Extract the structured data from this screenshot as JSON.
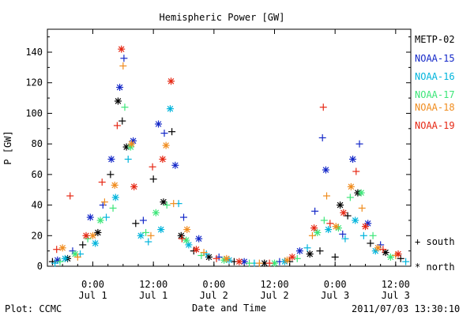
{
  "chart_data": {
    "type": "scatter",
    "title": "Hemispheric Power [GW]",
    "ylabel": "P [GW]",
    "xlabel": "Date and Time",
    "ylim": [
      0,
      155
    ],
    "yticks": [
      0,
      20,
      40,
      60,
      80,
      100,
      120,
      140
    ],
    "xlim": [
      "2011-06-30T15:00",
      "2011-07-03T15:00"
    ],
    "xticks": [
      {
        "t": "2011-07-01T00:00",
        "time": "0:00",
        "date": "Jul 1"
      },
      {
        "t": "2011-07-01T12:00",
        "time": "12:00",
        "date": "Jul 1"
      },
      {
        "t": "2011-07-02T00:00",
        "time": "0:00",
        "date": "Jul 2"
      },
      {
        "t": "2011-07-02T12:00",
        "time": "12:00",
        "date": "Jul 2"
      },
      {
        "t": "2011-07-03T00:00",
        "time": "0:00",
        "date": "Jul 3"
      },
      {
        "t": "2011-07-03T12:00",
        "time": "12:00",
        "date": "Jul 3"
      }
    ],
    "markers": {
      "south": "+",
      "north": "*"
    },
    "marker_labels": {
      "south": "south",
      "north": "north"
    },
    "series": [
      {
        "name": "METP-02",
        "color": "#000000",
        "points": [
          {
            "t": "2011-06-30T16:00",
            "v": 3,
            "h": "south"
          },
          {
            "t": "2011-06-30T19:00",
            "v": 5,
            "h": "north"
          },
          {
            "t": "2011-06-30T22:00",
            "v": 14,
            "h": "south"
          },
          {
            "t": "2011-07-01T01:00",
            "v": 22,
            "h": "north"
          },
          {
            "t": "2011-07-01T03:30",
            "v": 60,
            "h": "south"
          },
          {
            "t": "2011-07-01T05:00",
            "v": 108,
            "h": "north"
          },
          {
            "t": "2011-07-01T05:50",
            "v": 95,
            "h": "south"
          },
          {
            "t": "2011-07-01T06:40",
            "v": 78,
            "h": "north"
          },
          {
            "t": "2011-07-01T08:30",
            "v": 28,
            "h": "south"
          },
          {
            "t": "2011-07-01T12:00",
            "v": 57,
            "h": "south"
          },
          {
            "t": "2011-07-01T14:00",
            "v": 42,
            "h": "north"
          },
          {
            "t": "2011-07-01T15:40",
            "v": 88,
            "h": "south"
          },
          {
            "t": "2011-07-01T17:30",
            "v": 20,
            "h": "north"
          },
          {
            "t": "2011-07-01T20:00",
            "v": 10,
            "h": "south"
          },
          {
            "t": "2011-07-01T23:00",
            "v": 6,
            "h": "north"
          },
          {
            "t": "2011-07-02T04:00",
            "v": 3,
            "h": "south"
          },
          {
            "t": "2011-07-02T10:00",
            "v": 2,
            "h": "north"
          },
          {
            "t": "2011-07-02T15:00",
            "v": 3,
            "h": "south"
          },
          {
            "t": "2011-07-02T19:00",
            "v": 8,
            "h": "north"
          },
          {
            "t": "2011-07-02T21:00",
            "v": 10,
            "h": "south"
          },
          {
            "t": "2011-07-03T00:00",
            "v": 6,
            "h": "south"
          },
          {
            "t": "2011-07-03T01:00",
            "v": 40,
            "h": "north"
          },
          {
            "t": "2011-07-03T02:30",
            "v": 33,
            "h": "south"
          },
          {
            "t": "2011-07-03T04:30",
            "v": 48,
            "h": "north"
          },
          {
            "t": "2011-07-03T07:00",
            "v": 15,
            "h": "south"
          },
          {
            "t": "2011-07-03T10:00",
            "v": 9,
            "h": "north"
          },
          {
            "t": "2011-07-03T13:00",
            "v": 5,
            "h": "south"
          }
        ]
      },
      {
        "name": "NOAA-15",
        "color": "#1428c8",
        "points": [
          {
            "t": "2011-06-30T17:00",
            "v": 4,
            "h": "north"
          },
          {
            "t": "2011-06-30T20:00",
            "v": 10,
            "h": "south"
          },
          {
            "t": "2011-06-30T23:30",
            "v": 32,
            "h": "north"
          },
          {
            "t": "2011-07-01T02:00",
            "v": 40,
            "h": "south"
          },
          {
            "t": "2011-07-01T03:40",
            "v": 70,
            "h": "north"
          },
          {
            "t": "2011-07-01T05:20",
            "v": 117,
            "h": "north"
          },
          {
            "t": "2011-07-01T06:10",
            "v": 136,
            "h": "south"
          },
          {
            "t": "2011-07-01T08:00",
            "v": 82,
            "h": "north"
          },
          {
            "t": "2011-07-01T10:00",
            "v": 30,
            "h": "south"
          },
          {
            "t": "2011-07-01T13:00",
            "v": 93,
            "h": "north"
          },
          {
            "t": "2011-07-01T14:10",
            "v": 87,
            "h": "south"
          },
          {
            "t": "2011-07-01T16:20",
            "v": 66,
            "h": "north"
          },
          {
            "t": "2011-07-01T18:00",
            "v": 32,
            "h": "south"
          },
          {
            "t": "2011-07-01T21:00",
            "v": 18,
            "h": "north"
          },
          {
            "t": "2011-07-02T01:00",
            "v": 6,
            "h": "south"
          },
          {
            "t": "2011-07-02T06:00",
            "v": 3,
            "h": "north"
          },
          {
            "t": "2011-07-02T13:00",
            "v": 3,
            "h": "south"
          },
          {
            "t": "2011-07-02T17:00",
            "v": 10,
            "h": "north"
          },
          {
            "t": "2011-07-02T20:00",
            "v": 36,
            "h": "south"
          },
          {
            "t": "2011-07-02T21:30",
            "v": 84,
            "h": "south"
          },
          {
            "t": "2011-07-02T22:10",
            "v": 63,
            "h": "north"
          },
          {
            "t": "2011-07-03T01:30",
            "v": 21,
            "h": "south"
          },
          {
            "t": "2011-07-03T03:30",
            "v": 70,
            "h": "north"
          },
          {
            "t": "2011-07-03T04:50",
            "v": 80,
            "h": "south"
          },
          {
            "t": "2011-07-03T06:30",
            "v": 28,
            "h": "north"
          },
          {
            "t": "2011-07-03T09:00",
            "v": 14,
            "h": "south"
          }
        ]
      },
      {
        "name": "NOAA-16",
        "color": "#00b4dc",
        "points": [
          {
            "t": "2011-06-30T16:30",
            "v": 2,
            "h": "south"
          },
          {
            "t": "2011-06-30T18:30",
            "v": 5,
            "h": "north"
          },
          {
            "t": "2011-06-30T21:30",
            "v": 8,
            "h": "south"
          },
          {
            "t": "2011-07-01T00:30",
            "v": 15,
            "h": "north"
          },
          {
            "t": "2011-07-01T02:40",
            "v": 32,
            "h": "south"
          },
          {
            "t": "2011-07-01T04:30",
            "v": 45,
            "h": "north"
          },
          {
            "t": "2011-07-01T07:00",
            "v": 70,
            "h": "south"
          },
          {
            "t": "2011-07-01T09:30",
            "v": 20,
            "h": "north"
          },
          {
            "t": "2011-07-01T11:00",
            "v": 16,
            "h": "south"
          },
          {
            "t": "2011-07-01T13:30",
            "v": 24,
            "h": "north"
          },
          {
            "t": "2011-07-01T15:20",
            "v": 103,
            "h": "north"
          },
          {
            "t": "2011-07-01T17:00",
            "v": 41,
            "h": "south"
          },
          {
            "t": "2011-07-01T19:00",
            "v": 14,
            "h": "north"
          },
          {
            "t": "2011-07-01T22:30",
            "v": 8,
            "h": "south"
          },
          {
            "t": "2011-07-02T03:00",
            "v": 4,
            "h": "north"
          },
          {
            "t": "2011-07-02T08:00",
            "v": 2,
            "h": "south"
          },
          {
            "t": "2011-07-02T14:00",
            "v": 3,
            "h": "north"
          },
          {
            "t": "2011-07-02T18:30",
            "v": 12,
            "h": "south"
          },
          {
            "t": "2011-07-02T22:40",
            "v": 24,
            "h": "north"
          },
          {
            "t": "2011-07-03T02:00",
            "v": 18,
            "h": "south"
          },
          {
            "t": "2011-07-03T04:00",
            "v": 30,
            "h": "north"
          },
          {
            "t": "2011-07-03T05:40",
            "v": 20,
            "h": "south"
          },
          {
            "t": "2011-07-03T08:00",
            "v": 10,
            "h": "north"
          },
          {
            "t": "2011-07-03T14:00",
            "v": 3,
            "h": "south"
          }
        ]
      },
      {
        "name": "NOAA-17",
        "color": "#3ce678",
        "points": [
          {
            "t": "2011-06-30T17:30",
            "v": 3,
            "h": "south"
          },
          {
            "t": "2011-06-30T20:30",
            "v": 8,
            "h": "north"
          },
          {
            "t": "2011-06-30T23:00",
            "v": 18,
            "h": "south"
          },
          {
            "t": "2011-07-01T01:30",
            "v": 30,
            "h": "north"
          },
          {
            "t": "2011-07-01T04:00",
            "v": 38,
            "h": "south"
          },
          {
            "t": "2011-07-01T06:20",
            "v": 104,
            "h": "south"
          },
          {
            "t": "2011-07-01T07:30",
            "v": 78,
            "h": "north"
          },
          {
            "t": "2011-07-01T10:30",
            "v": 22,
            "h": "south"
          },
          {
            "t": "2011-07-01T12:30",
            "v": 35,
            "h": "north"
          },
          {
            "t": "2011-07-01T14:40",
            "v": 40,
            "h": "south"
          },
          {
            "t": "2011-07-01T18:30",
            "v": 17,
            "h": "north"
          },
          {
            "t": "2011-07-01T21:30",
            "v": 7,
            "h": "south"
          },
          {
            "t": "2011-07-02T02:00",
            "v": 4,
            "h": "north"
          },
          {
            "t": "2011-07-02T07:00",
            "v": 2,
            "h": "south"
          },
          {
            "t": "2011-07-02T12:00",
            "v": 2,
            "h": "north"
          },
          {
            "t": "2011-07-02T16:30",
            "v": 5,
            "h": "south"
          },
          {
            "t": "2011-07-02T20:30",
            "v": 22,
            "h": "north"
          },
          {
            "t": "2011-07-02T21:50",
            "v": 30,
            "h": "south"
          },
          {
            "t": "2011-07-03T00:40",
            "v": 25,
            "h": "north"
          },
          {
            "t": "2011-07-03T03:00",
            "v": 45,
            "h": "south"
          },
          {
            "t": "2011-07-03T05:10",
            "v": 48,
            "h": "north"
          },
          {
            "t": "2011-07-03T07:30",
            "v": 20,
            "h": "south"
          },
          {
            "t": "2011-07-03T11:00",
            "v": 6,
            "h": "north"
          }
        ]
      },
      {
        "name": "NOAA-18",
        "color": "#f08c1e",
        "points": [
          {
            "t": "2011-06-30T18:00",
            "v": 12,
            "h": "north"
          },
          {
            "t": "2011-06-30T21:00",
            "v": 6,
            "h": "south"
          },
          {
            "t": "2011-07-01T00:00",
            "v": 20,
            "h": "north"
          },
          {
            "t": "2011-07-01T02:20",
            "v": 42,
            "h": "south"
          },
          {
            "t": "2011-07-01T04:20",
            "v": 53,
            "h": "north"
          },
          {
            "t": "2011-07-01T06:00",
            "v": 131,
            "h": "south"
          },
          {
            "t": "2011-07-01T07:40",
            "v": 80,
            "h": "north"
          },
          {
            "t": "2011-07-01T11:30",
            "v": 20,
            "h": "south"
          },
          {
            "t": "2011-07-01T14:30",
            "v": 79,
            "h": "north"
          },
          {
            "t": "2011-07-01T16:00",
            "v": 41,
            "h": "south"
          },
          {
            "t": "2011-07-01T18:40",
            "v": 24,
            "h": "north"
          },
          {
            "t": "2011-07-01T22:00",
            "v": 9,
            "h": "south"
          },
          {
            "t": "2011-07-02T02:30",
            "v": 5,
            "h": "north"
          },
          {
            "t": "2011-07-02T09:00",
            "v": 2,
            "h": "south"
          },
          {
            "t": "2011-07-02T14:30",
            "v": 4,
            "h": "north"
          },
          {
            "t": "2011-07-02T19:30",
            "v": 20,
            "h": "south"
          },
          {
            "t": "2011-07-02T22:20",
            "v": 46,
            "h": "south"
          },
          {
            "t": "2011-07-03T00:10",
            "v": 26,
            "h": "north"
          },
          {
            "t": "2011-07-03T03:10",
            "v": 52,
            "h": "north"
          },
          {
            "t": "2011-07-03T05:20",
            "v": 38,
            "h": "south"
          },
          {
            "t": "2011-07-03T08:30",
            "v": 12,
            "h": "north"
          },
          {
            "t": "2011-07-03T12:00",
            "v": 7,
            "h": "south"
          }
        ]
      },
      {
        "name": "NOAA-19",
        "color": "#e62814",
        "points": [
          {
            "t": "2011-06-30T16:50",
            "v": 11,
            "h": "south"
          },
          {
            "t": "2011-06-30T19:30",
            "v": 46,
            "h": "south"
          },
          {
            "t": "2011-06-30T22:40",
            "v": 20,
            "h": "north"
          },
          {
            "t": "2011-07-01T01:50",
            "v": 55,
            "h": "south"
          },
          {
            "t": "2011-07-01T04:50",
            "v": 92,
            "h": "south"
          },
          {
            "t": "2011-07-01T05:40",
            "v": 142,
            "h": "north"
          },
          {
            "t": "2011-07-01T08:10",
            "v": 52,
            "h": "north"
          },
          {
            "t": "2011-07-01T11:50",
            "v": 65,
            "h": "south"
          },
          {
            "t": "2011-07-01T13:50",
            "v": 70,
            "h": "north"
          },
          {
            "t": "2011-07-01T15:30",
            "v": 121,
            "h": "north"
          },
          {
            "t": "2011-07-01T17:40",
            "v": 18,
            "h": "south"
          },
          {
            "t": "2011-07-01T20:30",
            "v": 11,
            "h": "north"
          },
          {
            "t": "2011-07-02T00:30",
            "v": 5,
            "h": "south"
          },
          {
            "t": "2011-07-02T05:00",
            "v": 3,
            "h": "north"
          },
          {
            "t": "2011-07-02T11:00",
            "v": 2,
            "h": "south"
          },
          {
            "t": "2011-07-02T15:30",
            "v": 6,
            "h": "north"
          },
          {
            "t": "2011-07-02T19:50",
            "v": 25,
            "h": "north"
          },
          {
            "t": "2011-07-02T21:40",
            "v": 104,
            "h": "south"
          },
          {
            "t": "2011-07-02T23:00",
            "v": 28,
            "h": "south"
          },
          {
            "t": "2011-07-03T01:40",
            "v": 35,
            "h": "north"
          },
          {
            "t": "2011-07-03T04:10",
            "v": 62,
            "h": "south"
          },
          {
            "t": "2011-07-03T06:00",
            "v": 26,
            "h": "north"
          },
          {
            "t": "2011-07-03T09:30",
            "v": 11,
            "h": "south"
          },
          {
            "t": "2011-07-03T12:30",
            "v": 8,
            "h": "north"
          }
        ]
      }
    ]
  },
  "footer": {
    "plot_by": "Plot: CCMC",
    "timestamp": "2011/07/03 13:30:10"
  }
}
